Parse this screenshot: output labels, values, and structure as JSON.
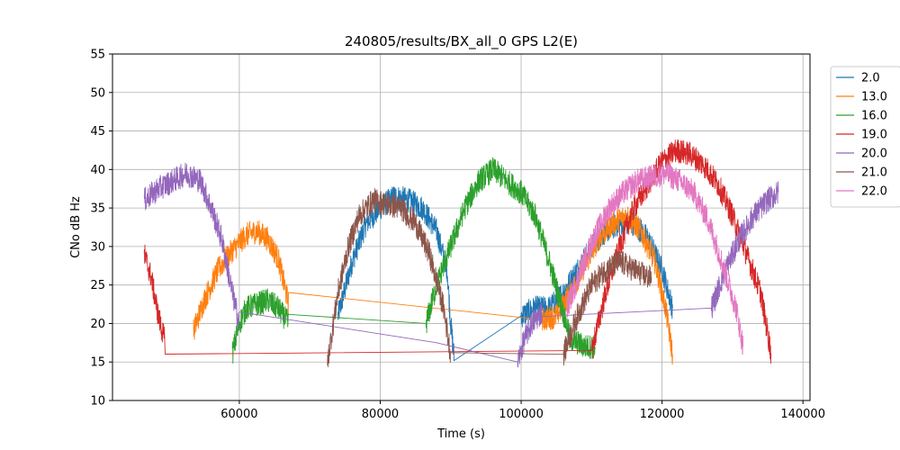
{
  "chart_data": {
    "type": "line",
    "title": "240805/results/BX_all_0 GPS L2(E)",
    "xlabel": "Time (s)",
    "ylabel": "CNo dB Hz",
    "xlim": [
      42000,
      141000
    ],
    "ylim": [
      10,
      55
    ],
    "xticks": [
      60000,
      80000,
      100000,
      120000,
      140000
    ],
    "xtick_labels": [
      "60000",
      "80000",
      "100000",
      "120000",
      "140000"
    ],
    "yticks": [
      10,
      15,
      20,
      25,
      30,
      35,
      40,
      45,
      50,
      55
    ],
    "ytick_labels": [
      "10",
      "15",
      "20",
      "25",
      "30",
      "35",
      "40",
      "45",
      "50",
      "55"
    ],
    "grid": true,
    "legend_position": "outside-right",
    "series": [
      {
        "name": "2.0",
        "color": "#1f77b4",
        "x": [
          74000,
          76000,
          78000,
          80000,
          82000,
          84000,
          86000,
          88000,
          89500,
          90000,
          90500,
          100000,
          102000,
          104000,
          106000,
          108000,
          110000,
          112000,
          114000,
          116000,
          118000,
          120000,
          121500
        ],
        "y": [
          21,
          28,
          33,
          35,
          36.5,
          36,
          35,
          32,
          27,
          20,
          15.5,
          21,
          22,
          22,
          24,
          27,
          30,
          32,
          33,
          33,
          31,
          27,
          22
        ]
      },
      {
        "name": "13.0",
        "color": "#ff7f0e",
        "x": [
          53500,
          55000,
          57000,
          59000,
          61000,
          62500,
          64000,
          65500,
          67000,
          103000,
          105000,
          107000,
          109000,
          111000,
          113000,
          115000,
          117000,
          119000,
          120500,
          121500
        ],
        "y": [
          19,
          23,
          27,
          29.5,
          31.5,
          32,
          31,
          28.5,
          22.5,
          20.5,
          21,
          24,
          27.5,
          31,
          33,
          34,
          32,
          28,
          22,
          16
        ]
      },
      {
        "name": "16.0",
        "color": "#2ca02c",
        "x": [
          59000,
          60000,
          61000,
          62500,
          64000,
          65500,
          67000,
          86500,
          88000,
          90000,
          92000,
          94000,
          96000,
          98000,
          100000,
          102000,
          104000,
          105500,
          107000,
          109000,
          110500
        ],
        "y": [
          16,
          20,
          22,
          22.5,
          23,
          22,
          20,
          20,
          25,
          30,
          35,
          38.5,
          40,
          38.5,
          37,
          34,
          28,
          23,
          18,
          17,
          17
        ]
      },
      {
        "name": "19.0",
        "color": "#d62728",
        "x": [
          46500,
          47500,
          48500,
          49500,
          110000,
          112000,
          114000,
          116000,
          118000,
          120000,
          122000,
          124000,
          126000,
          128000,
          130000,
          132000,
          134000,
          135500
        ],
        "y": [
          29,
          26,
          21,
          17.5,
          16.5,
          24,
          30,
          35,
          38,
          41,
          42.5,
          42,
          40.5,
          38,
          34,
          29,
          24,
          16
        ]
      },
      {
        "name": "20.0",
        "color": "#9467bd",
        "x": [
          46500,
          48500,
          50500,
          52500,
          54500,
          56000,
          57500,
          59000,
          60000,
          88000,
          99500,
          100500,
          101500,
          103000,
          127000,
          129000,
          131000,
          133000,
          135000,
          136500
        ],
        "y": [
          36,
          37.5,
          38.5,
          39.5,
          38.5,
          35,
          31,
          24,
          20,
          17.5,
          15,
          18,
          20,
          21.5,
          22,
          27,
          31,
          34,
          36,
          37
        ]
      },
      {
        "name": "21.0",
        "color": "#8c564b",
        "x": [
          72500,
          74000,
          75500,
          77000,
          79000,
          81000,
          83000,
          85000,
          87000,
          89000,
          90000,
          106000,
          108000,
          110000,
          112000,
          114000,
          116000,
          118000,
          118500
        ],
        "y": [
          15,
          24,
          30,
          34,
          36,
          35.5,
          35,
          33,
          29,
          22,
          16,
          16,
          21,
          25,
          27,
          28,
          27,
          26,
          26
        ]
      },
      {
        "name": "22.0",
        "color": "#e377c2",
        "x": [
          106500,
          108500,
          110500,
          112500,
          114500,
          116500,
          118500,
          120500,
          122500,
          124500,
          126500,
          128500,
          130500,
          131500
        ],
        "y": [
          22,
          27,
          31.5,
          35,
          37,
          38.5,
          39,
          39.5,
          38.5,
          37,
          33.5,
          28,
          22,
          17
        ]
      }
    ]
  }
}
